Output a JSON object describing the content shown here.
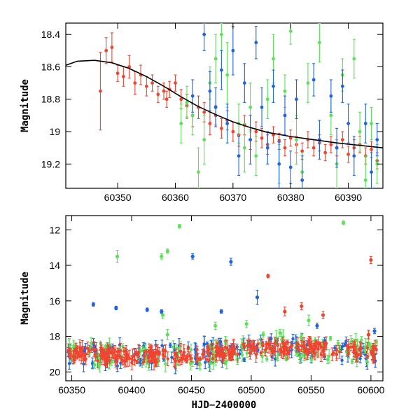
{
  "colors": {
    "red": "#ef4530",
    "green": "#5de05a",
    "blue": "#1f63e0",
    "curve": "#000000"
  },
  "chart_data": [
    {
      "type": "scatter",
      "xlabel": "",
      "ylabel": "Magnitude",
      "xlim": [
        60341,
        60396
      ],
      "ylim": [
        19.35,
        18.33
      ],
      "y_inverted": true,
      "x_ticks": [
        60350,
        60360,
        60370,
        60380,
        60390
      ],
      "y_ticks": [
        18.4,
        18.6,
        18.8,
        19,
        19.2
      ],
      "x_tick_labels": [
        "60350",
        "60360",
        "60370",
        "60380",
        "60390"
      ],
      "y_tick_labels": [
        "18.4",
        "18.6",
        "18.8",
        "19",
        "19.2"
      ],
      "grid": false,
      "model_curve": [
        [
          60341,
          18.59
        ],
        [
          60343,
          18.565
        ],
        [
          60346,
          18.56
        ],
        [
          60349,
          18.575
        ],
        [
          60352,
          18.61
        ],
        [
          60355,
          18.66
        ],
        [
          60358,
          18.72
        ],
        [
          60361,
          18.785
        ],
        [
          60364,
          18.845
        ],
        [
          60367,
          18.895
        ],
        [
          60370,
          18.94
        ],
        [
          60373,
          18.975
        ],
        [
          60376,
          19.005
        ],
        [
          60380,
          19.03
        ],
        [
          60384,
          19.05
        ],
        [
          60388,
          19.07
        ],
        [
          60392,
          19.085
        ],
        [
          60396,
          19.1
        ]
      ],
      "series": [
        {
          "color_key": "red",
          "points": [
            [
              60347,
              18.75,
              0.24
            ],
            [
              60348,
              18.5,
              0.08
            ],
            [
              60349,
              18.48,
              0.09
            ],
            [
              60350,
              18.64,
              0.05
            ],
            [
              60351,
              18.66,
              0.06
            ],
            [
              60352,
              18.6,
              0.07
            ],
            [
              60353,
              18.7,
              0.07
            ],
            [
              60354,
              18.65,
              0.06
            ],
            [
              60355,
              18.72,
              0.06
            ],
            [
              60356,
              18.7,
              0.05
            ],
            [
              60357,
              18.77,
              0.05
            ],
            [
              60358,
              18.75,
              0.05
            ],
            [
              60358.5,
              18.8,
              0.05
            ],
            [
              60359,
              18.74,
              0.05
            ],
            [
              60360,
              18.7,
              0.05
            ],
            [
              60361,
              18.8,
              0.06
            ],
            [
              60362,
              18.84,
              0.07
            ],
            [
              60363,
              18.9,
              0.07
            ],
            [
              60364,
              18.85,
              0.07
            ],
            [
              60365,
              18.88,
              0.06
            ],
            [
              60366,
              18.95,
              0.07
            ],
            [
              60367,
              18.9,
              0.06
            ],
            [
              60368,
              18.98,
              0.06
            ],
            [
              60369,
              18.93,
              0.06
            ],
            [
              60370,
              19.0,
              0.06
            ],
            [
              60371,
              19.02,
              0.07
            ],
            [
              60372,
              18.96,
              0.06
            ],
            [
              60373,
              19.05,
              0.06
            ],
            [
              60374,
              19.0,
              0.06
            ],
            [
              60375,
              19.04,
              0.06
            ],
            [
              60376,
              19.08,
              0.06
            ],
            [
              60377,
              19.02,
              0.05
            ],
            [
              60378,
              19.06,
              0.05
            ],
            [
              60379,
              19.1,
              0.05
            ],
            [
              60380,
              19.04,
              0.05
            ],
            [
              60381,
              19.08,
              0.05
            ],
            [
              60382,
              19.12,
              0.05
            ],
            [
              60383,
              19.05,
              0.05
            ],
            [
              60384,
              19.1,
              0.05
            ],
            [
              60385,
              19.07,
              0.05
            ],
            [
              60386,
              19.13,
              0.05
            ],
            [
              60387,
              19.08,
              0.05
            ],
            [
              60388,
              19.1,
              0.05
            ],
            [
              60389,
              19.05,
              0.05
            ],
            [
              60390,
              19.14,
              0.05
            ],
            [
              60391,
              19.1,
              0.05
            ],
            [
              60392,
              19.08,
              0.05
            ],
            [
              60393,
              19.15,
              0.05
            ],
            [
              60394,
              19.11,
              0.05
            ],
            [
              60395,
              19.18,
              0.05
            ]
          ]
        },
        {
          "color_key": "green",
          "points": [
            [
              60361,
              18.95,
              0.12
            ],
            [
              60362,
              18.82,
              0.1
            ],
            [
              60363,
              18.9,
              0.12
            ],
            [
              60364,
              19.25,
              0.15
            ],
            [
              60365,
              19.05,
              0.15
            ],
            [
              60366,
              18.7,
              0.1
            ],
            [
              60367,
              18.55,
              0.15
            ],
            [
              60368,
              18.4,
              0.1
            ],
            [
              60369,
              18.65,
              0.2
            ],
            [
              60371,
              18.95,
              0.12
            ],
            [
              60372,
              19.1,
              0.15
            ],
            [
              60373,
              18.85,
              0.15
            ],
            [
              60374,
              19.15,
              0.12
            ],
            [
              60376,
              18.8,
              0.12
            ],
            [
              60377,
              18.55,
              0.15
            ],
            [
              60378,
              19.2,
              0.12
            ],
            [
              60379,
              18.75,
              0.1
            ],
            [
              60380,
              18.38,
              0.08
            ],
            [
              60381,
              19.05,
              0.15
            ],
            [
              60382,
              19.25,
              0.12
            ],
            [
              60383,
              18.7,
              0.12
            ],
            [
              60385,
              18.45,
              0.12
            ],
            [
              60387,
              18.9,
              0.12
            ],
            [
              60388,
              19.2,
              0.15
            ],
            [
              60389,
              18.65,
              0.1
            ],
            [
              60391,
              18.55,
              0.12
            ],
            [
              60392,
              19.0,
              0.12
            ],
            [
              60393,
              19.3,
              0.15
            ],
            [
              60394,
              18.95,
              0.1
            ],
            [
              60395,
              19.2,
              0.12
            ]
          ]
        },
        {
          "color_key": "blue",
          "points": [
            [
              60363,
              18.78,
              0.1
            ],
            [
              60365,
              18.4,
              0.1
            ],
            [
              60366,
              18.75,
              0.12
            ],
            [
              60367,
              18.85,
              0.12
            ],
            [
              60368,
              18.62,
              0.12
            ],
            [
              60369,
              18.95,
              0.12
            ],
            [
              60370,
              18.5,
              0.15
            ],
            [
              60371,
              19.15,
              0.12
            ],
            [
              60372,
              18.7,
              0.12
            ],
            [
              60373,
              19.05,
              0.15
            ],
            [
              60374,
              18.45,
              0.1
            ],
            [
              60375,
              18.85,
              0.12
            ],
            [
              60376,
              19.1,
              0.1
            ],
            [
              60377,
              18.72,
              0.1
            ],
            [
              60378,
              19.2,
              0.15
            ],
            [
              60379,
              18.9,
              0.12
            ],
            [
              60380,
              19.22,
              0.1
            ],
            [
              60381,
              18.8,
              0.12
            ],
            [
              60382,
              19.3,
              0.15
            ],
            [
              60384,
              18.68,
              0.1
            ],
            [
              60385,
              19.05,
              0.12
            ],
            [
              60387,
              18.78,
              0.1
            ],
            [
              60388,
              19.1,
              0.12
            ],
            [
              60389,
              18.72,
              0.1
            ],
            [
              60390,
              18.95,
              0.12
            ],
            [
              60391,
              19.15,
              0.12
            ],
            [
              60393,
              18.95,
              0.12
            ],
            [
              60394,
              19.25,
              0.12
            ],
            [
              60395,
              19.05,
              0.1
            ]
          ]
        }
      ]
    },
    {
      "type": "scatter",
      "xlabel": "HJD−2400000",
      "ylabel": "Magnitude",
      "xlim": [
        60345,
        60610
      ],
      "ylim": [
        20.5,
        11.2
      ],
      "y_inverted": true,
      "x_ticks": [
        60350,
        60400,
        60450,
        60500,
        60550,
        60600
      ],
      "y_ticks": [
        12,
        14,
        16,
        18,
        20
      ],
      "x_tick_labels": [
        "60350",
        "60400",
        "60450",
        "60500",
        "60550",
        "60600"
      ],
      "y_tick_labels": [
        "12",
        "14",
        "16",
        "18",
        "20"
      ],
      "grid": false,
      "outliers": [
        {
          "color_key": "green",
          "points": [
            [
              60369,
              19.6,
              0.2
            ],
            [
              60388,
              13.5,
              0.35
            ],
            [
              60425,
              13.5,
              0.15
            ],
            [
              60430,
              13.2,
              0.12
            ],
            [
              60440,
              11.8,
              0.1
            ],
            [
              60426,
              16.8,
              0.2
            ],
            [
              60430,
              17.9,
              0.3
            ],
            [
              60470,
              17.4,
              0.2
            ],
            [
              60496,
              17.3,
              0.2
            ],
            [
              60510,
              17.9,
              0.15
            ],
            [
              60524,
              17.8,
              0.2
            ],
            [
              60548,
              17.1,
              0.3
            ],
            [
              60577,
              11.6,
              0.1
            ],
            [
              60598,
              17.9,
              0.2
            ]
          ]
        },
        {
          "color_key": "blue",
          "points": [
            [
              60368,
              16.2,
              0.1
            ],
            [
              60387,
              16.4,
              0.1
            ],
            [
              60413,
              16.5,
              0.1
            ],
            [
              60425,
              16.6,
              0.1
            ],
            [
              60451,
              13.5,
              0.15
            ],
            [
              60475,
              16.6,
              0.1
            ],
            [
              60483,
              13.8,
              0.2
            ],
            [
              60505,
              15.8,
              0.4
            ],
            [
              60555,
              17.4,
              0.15
            ],
            [
              60603,
              17.7,
              0.15
            ]
          ]
        },
        {
          "color_key": "red",
          "points": [
            [
              60514,
              14.6,
              0.1
            ],
            [
              60528,
              16.6,
              0.25
            ],
            [
              60542,
              16.3,
              0.2
            ],
            [
              60560,
              16.8,
              0.2
            ],
            [
              60598,
              17.9,
              0.25
            ],
            [
              60600,
              13.7,
              0.2
            ]
          ]
        }
      ]
    }
  ]
}
